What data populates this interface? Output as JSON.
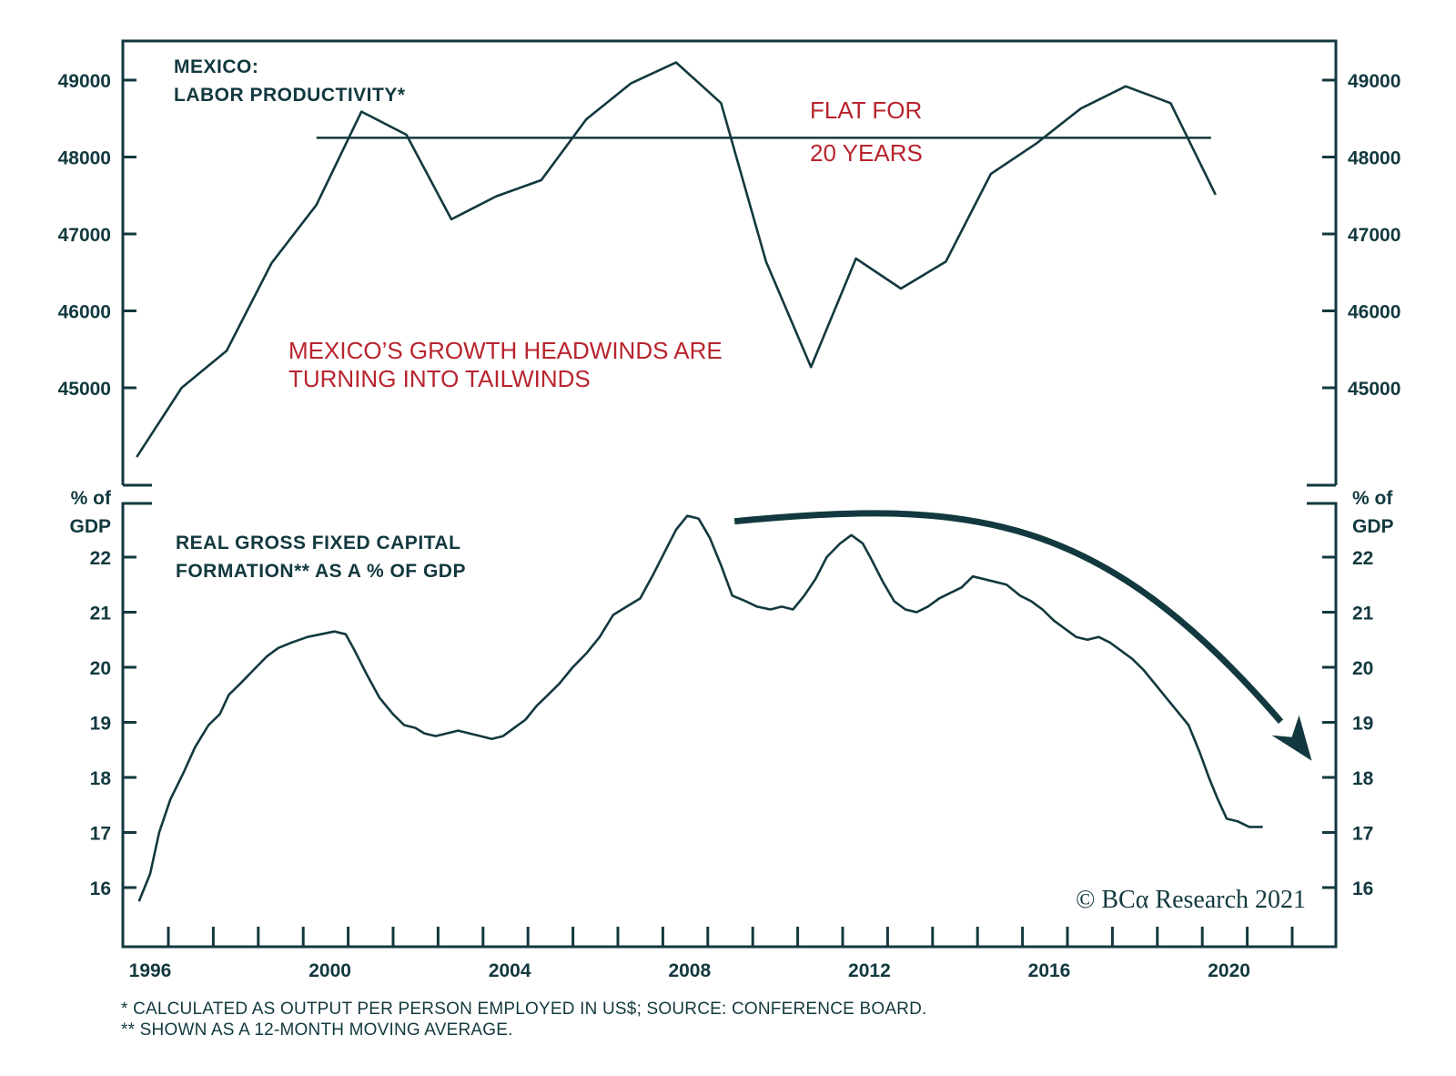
{
  "colors": {
    "ink": "#12393f",
    "accent_red": "#b8242e",
    "background": "#ffffff"
  },
  "chart_data": [
    {
      "type": "line",
      "panel": "top",
      "title_line1": "MEXICO:",
      "title_line2": "LABOR PRODUCTIVITY*",
      "xlabel": "",
      "ylabel": "",
      "ylim": [
        44000,
        49700
      ],
      "y_ticks": [
        45000,
        46000,
        47000,
        48000,
        49000
      ],
      "y_tick_labels": [
        "45000",
        "46000",
        "47000",
        "48000",
        "49000"
      ],
      "y_axis_sides": [
        "left",
        "right"
      ],
      "series": [
        {
          "name": "Labor productivity",
          "x": [
            1995.7,
            1996.7,
            1997.7,
            1998.7,
            1999.7,
            2000.7,
            2001.7,
            2002.7,
            2003.7,
            2004.7,
            2005.7,
            2006.7,
            2007.7,
            2008.7,
            2009.7,
            2010.7,
            2011.7,
            2012.7,
            2013.7,
            2014.7,
            2015.7,
            2016.7,
            2017.7,
            2018.7,
            2019.7
          ],
          "values": [
            44100,
            45000,
            45480,
            46620,
            47380,
            48590,
            48290,
            47190,
            47490,
            47700,
            48490,
            48960,
            49230,
            48700,
            46640,
            45270,
            46680,
            46290,
            46640,
            47780,
            48170,
            48630,
            48920,
            48700,
            47510
          ]
        }
      ],
      "reference_line": {
        "value": 48250,
        "x_start": 1999.7,
        "x_end": 2019.6
      },
      "annotations": [
        {
          "text": "FLAT FOR",
          "color": "#b8242e"
        },
        {
          "text": "20 YEARS",
          "color": "#b8242e"
        },
        {
          "text": "MEXICO’S GROWTH HEADWINDS ARE",
          "color": "#b8242e"
        },
        {
          "text": "TURNING INTO TAILWINDS",
          "color": "#b8242e"
        }
      ]
    },
    {
      "type": "line",
      "panel": "bottom",
      "title_line1": "REAL GROSS FIXED CAPITAL",
      "title_line2": "FORMATION** AS A % OF GDP",
      "ylabel_line1": "% of",
      "ylabel_line2": "GDP",
      "ylim": [
        15.0,
        22.7
      ],
      "y_ticks": [
        16,
        17,
        18,
        19,
        20,
        21,
        22
      ],
      "y_tick_labels": [
        "16",
        "17",
        "18",
        "19",
        "20",
        "21",
        "22"
      ],
      "y_axis_sides": [
        "left",
        "right"
      ],
      "series": [
        {
          "name": "Real GFCF % of GDP (12-month moving average)",
          "x": [
            1995.75,
            1996.0,
            1996.2,
            1996.45,
            1996.75,
            1997.0,
            1997.3,
            1997.55,
            1997.75,
            1998.0,
            1998.3,
            1998.6,
            1998.85,
            1999.15,
            1999.5,
            1999.8,
            2000.1,
            2000.35,
            2000.55,
            2000.8,
            2001.1,
            2001.4,
            2001.65,
            2001.9,
            2002.1,
            2002.35,
            2002.6,
            2002.85,
            2003.1,
            2003.35,
            2003.6,
            2003.85,
            2004.1,
            2004.35,
            2004.6,
            2004.85,
            2005.1,
            2005.4,
            2005.7,
            2006.0,
            2006.3,
            2006.6,
            2006.9,
            2007.2,
            2007.45,
            2007.7,
            2007.95,
            2008.2,
            2008.45,
            2008.7,
            2008.95,
            2009.25,
            2009.5,
            2009.8,
            2010.05,
            2010.3,
            2010.55,
            2010.8,
            2011.05,
            2011.35,
            2011.6,
            2011.85,
            2012.05,
            2012.3,
            2012.55,
            2012.8,
            2013.05,
            2013.3,
            2013.55,
            2013.8,
            2014.05,
            2014.3,
            2014.55,
            2014.8,
            2015.05,
            2015.35,
            2015.6,
            2015.85,
            2016.1,
            2016.35,
            2016.6,
            2016.85,
            2017.1,
            2017.35,
            2017.6,
            2017.85,
            2018.1,
            2018.35,
            2018.6,
            2018.85,
            2019.1,
            2019.35,
            2019.55,
            2019.75,
            2019.95,
            2020.2,
            2020.45,
            2020.75
          ],
          "values": [
            15.75,
            16.25,
            17.0,
            17.6,
            18.1,
            18.55,
            18.95,
            19.15,
            19.5,
            19.7,
            19.95,
            20.2,
            20.35,
            20.45,
            20.55,
            20.6,
            20.65,
            20.6,
            20.3,
            19.9,
            19.45,
            19.15,
            18.95,
            18.9,
            18.8,
            18.75,
            18.8,
            18.85,
            18.8,
            18.75,
            18.7,
            18.75,
            18.9,
            19.05,
            19.3,
            19.5,
            19.7,
            20.0,
            20.25,
            20.55,
            20.95,
            21.1,
            21.25,
            21.7,
            22.1,
            22.5,
            22.75,
            22.7,
            22.35,
            21.85,
            21.3,
            21.2,
            21.1,
            21.05,
            21.1,
            21.05,
            21.3,
            21.6,
            22.0,
            22.25,
            22.4,
            22.25,
            21.95,
            21.55,
            21.2,
            21.05,
            21.0,
            21.1,
            21.25,
            21.35,
            21.45,
            21.65,
            21.6,
            21.55,
            21.5,
            21.3,
            21.2,
            21.05,
            20.85,
            20.7,
            20.55,
            20.5,
            20.55,
            20.45,
            20.3,
            20.15,
            19.95,
            19.7,
            19.45,
            19.2,
            18.95,
            18.45,
            18.0,
            17.6,
            17.25,
            17.2,
            17.1,
            17.1
          ]
        }
      ],
      "trend_arrow": {
        "direction": "down",
        "from_year": 2009.0,
        "to_year": 2021.8,
        "meaning": "declining trend"
      }
    }
  ],
  "x_axis": {
    "tick_years": [
      1996,
      1997,
      1998,
      1999,
      2000,
      2001,
      2002,
      2003,
      2004,
      2005,
      2006,
      2007,
      2008,
      2009,
      2010,
      2011,
      2012,
      2013,
      2014,
      2015,
      2016,
      2017,
      2018,
      2019,
      2020,
      2021,
      2022
    ],
    "labels": [
      "1996",
      "2000",
      "2004",
      "2008",
      "2012",
      "2016",
      "2020"
    ]
  },
  "copyright": "© BCα Research 2021",
  "footnotes": [
    "*  CALCULATED AS OUTPUT PER PERSON EMPLOYED IN US$; SOURCE: CONFERENCE BOARD.",
    "** SHOWN AS A 12-MONTH MOVING AVERAGE."
  ]
}
